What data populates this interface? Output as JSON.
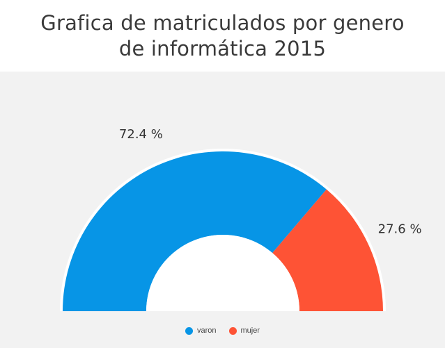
{
  "chart_data": {
    "type": "pie",
    "variant": "semi-donut",
    "title_lines": [
      "Grafica de matriculados por genero",
      "de informática 2015"
    ],
    "categories": [
      "varon",
      "mujer"
    ],
    "values": [
      72.4,
      27.6
    ],
    "labels": [
      "72.4 %",
      "27.6 %"
    ],
    "colors": [
      "#0795e6",
      "#fe5335"
    ],
    "legend_position": "bottom"
  }
}
